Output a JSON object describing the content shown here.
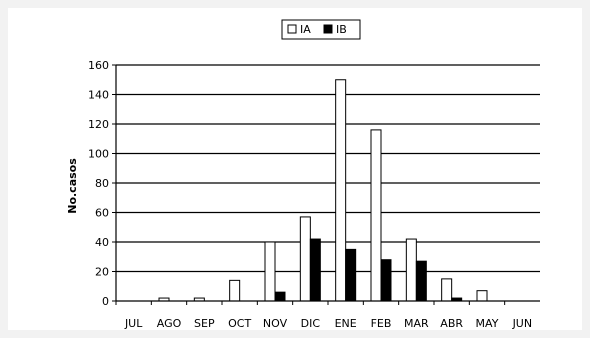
{
  "chart_data": {
    "type": "bar",
    "categories": [
      "JUL",
      "AGO",
      "SEP",
      "OCT",
      "NOV",
      "DIC",
      "ENE",
      "FEB",
      "MAR",
      "ABR",
      "MAY",
      "JUN"
    ],
    "series": [
      {
        "name": "IA",
        "color": "#ffffff",
        "values": [
          0,
          2,
          2,
          14,
          40,
          57,
          150,
          116,
          42,
          15,
          7,
          0
        ]
      },
      {
        "name": "IB",
        "color": "#000000",
        "values": [
          0,
          0,
          0,
          0,
          6,
          42,
          35,
          28,
          27,
          2,
          0,
          0
        ]
      }
    ],
    "ylabel": "No.casos",
    "ylim": [
      0,
      160
    ],
    "yticks": [
      0,
      20,
      40,
      60,
      80,
      100,
      120,
      140,
      160
    ],
    "grid": true,
    "legend": "top-center"
  }
}
